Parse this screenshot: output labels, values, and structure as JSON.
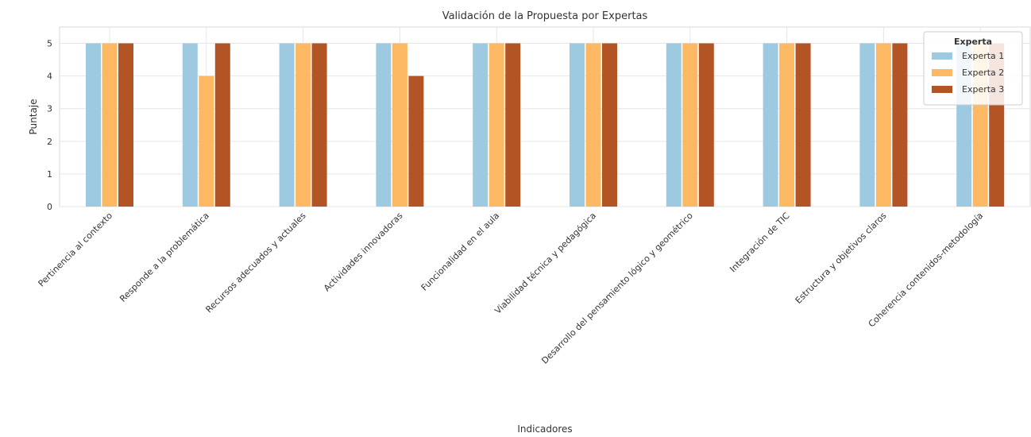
{
  "chart_data": {
    "type": "bar",
    "title": "Validación de la Propuesta por Expertas",
    "xlabel": "Indicadores",
    "ylabel": "Puntaje",
    "ylim": [
      0,
      5.5
    ],
    "yticks": [
      0,
      1,
      2,
      3,
      4,
      5
    ],
    "grid": true,
    "legend": {
      "title": "Experta",
      "position": "top-right"
    },
    "categories": [
      "Pertinencia al contexto",
      "Responde a la problemática",
      "Recursos adecuados y actuales",
      "Actividades innovadoras",
      "Funcionalidad en el aula",
      "Viabilidad técnica y pedagógica",
      "Desarrollo del pensamiento lógico y geométrico",
      "Integración de TIC",
      "Estructura y objetivos claros",
      "Coherencia contenidos-metodología"
    ],
    "series": [
      {
        "name": "Experta 1",
        "color": "#9ecae1",
        "values": [
          5,
          5,
          5,
          5,
          5,
          5,
          5,
          5,
          5,
          5
        ]
      },
      {
        "name": "Experta 2",
        "color": "#fdb863",
        "values": [
          5,
          4,
          5,
          5,
          5,
          5,
          5,
          5,
          5,
          5
        ]
      },
      {
        "name": "Experta 3",
        "color": "#b35424",
        "values": [
          5,
          5,
          5,
          4,
          5,
          5,
          5,
          5,
          5,
          5
        ]
      }
    ]
  }
}
